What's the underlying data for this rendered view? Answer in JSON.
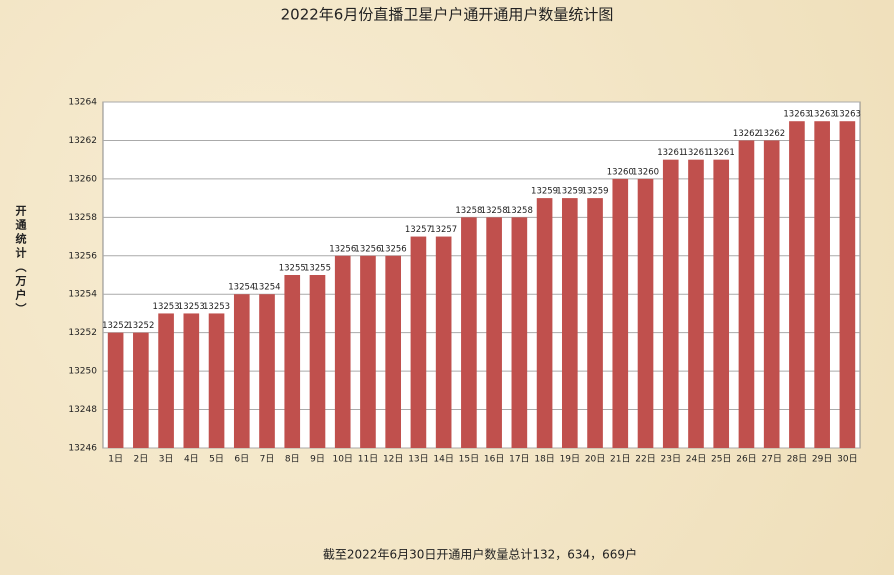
{
  "chart_data": {
    "type": "bar",
    "title": "2022年6月份直播卫星户户通开通用户数量统计图",
    "y_label": "开通统计（万户）",
    "note": "截至2022年6月30日开通用户数量总计132，634，669户",
    "categories": [
      "1日",
      "2日",
      "3日",
      "4日",
      "5日",
      "6日",
      "7日",
      "8日",
      "9日",
      "10日",
      "11日",
      "12日",
      "13日",
      "14日",
      "15日",
      "16日",
      "17日",
      "18日",
      "19日",
      "20日",
      "21日",
      "22日",
      "23日",
      "24日",
      "25日",
      "26日",
      "27日",
      "28日",
      "29日",
      "30日"
    ],
    "values": [
      13252,
      13252,
      13253,
      13253,
      13253,
      13254,
      13254,
      13255,
      13255,
      13256,
      13256,
      13256,
      13257,
      13257,
      13258,
      13258,
      13258,
      13259,
      13259,
      13259,
      13260,
      13260,
      13261,
      13261,
      13261,
      13262,
      13262,
      13263,
      13263,
      13263
    ],
    "color": "#c0504d",
    "ylim": [
      13246,
      13264
    ],
    "yticks": [
      13246,
      13248,
      13250,
      13252,
      13254,
      13256,
      13258,
      13260,
      13262,
      13264
    ],
    "grid": true
  }
}
